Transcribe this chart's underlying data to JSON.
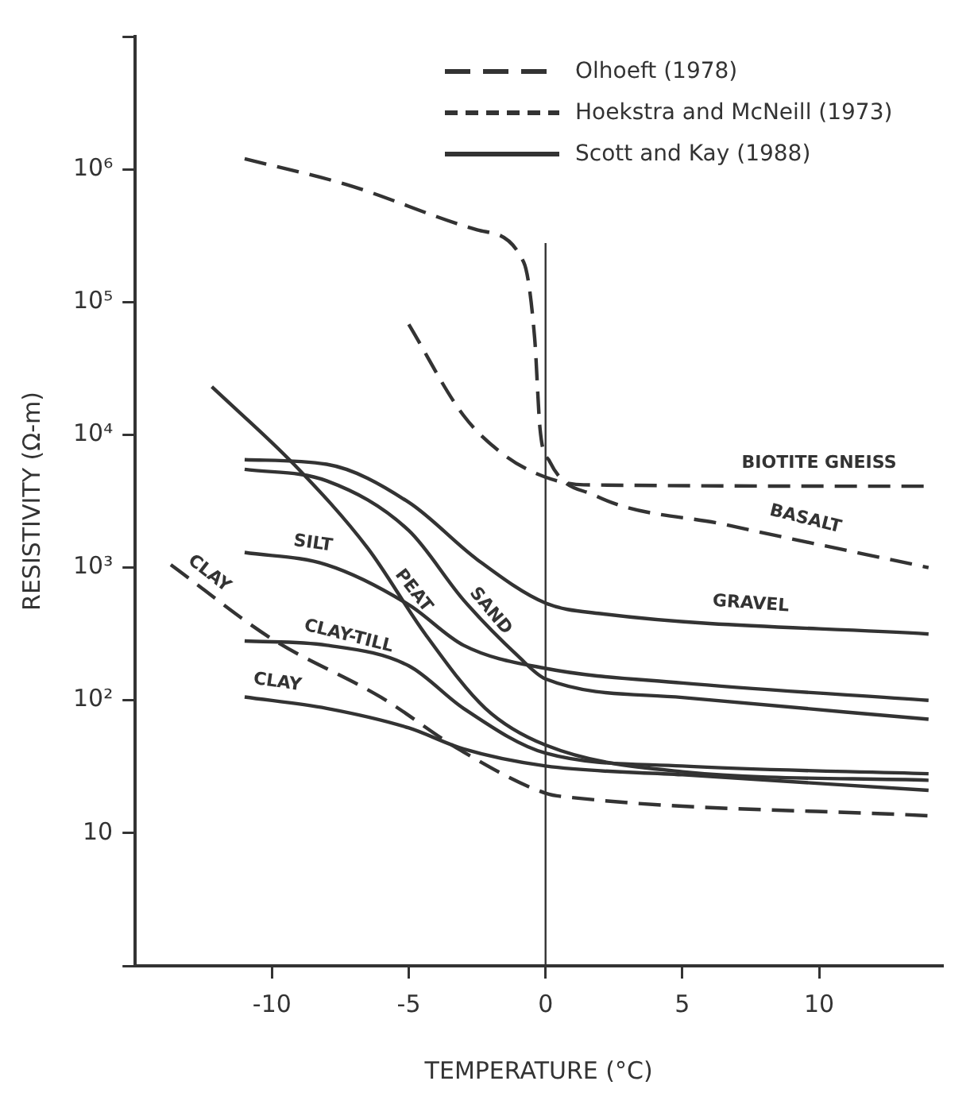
{
  "chart_data": {
    "type": "line",
    "xlabel": "TEMPERATURE (°C)",
    "ylabel": "RESISTIVITY (Ω-m)",
    "log": "y",
    "xlim": [
      -15,
      14.5
    ],
    "xticks": [
      -10,
      -5,
      0,
      5,
      10
    ],
    "ylim": [
      1,
      10000000
    ],
    "yticks": [
      {
        "value": 1,
        "label": null
      },
      {
        "value": 10,
        "label": "10"
      },
      {
        "value": 100,
        "label": "10²"
      },
      {
        "value": 1000,
        "label": "10³"
      },
      {
        "value": 10000,
        "label": "10⁴"
      },
      {
        "value": 100000,
        "label": "10⁵"
      },
      {
        "value": 1000000,
        "label": "10⁶"
      },
      {
        "value": 10000000,
        "label": null
      }
    ],
    "grid": false,
    "marker": "none",
    "ref_lines": [
      {
        "axis": "x",
        "value": 0,
        "color": "#333333",
        "line_style": "solid"
      }
    ],
    "annotations": [
      "Olhoeft (1978)",
      "Hoekstra and McNeill (1973)",
      "Scott and Kay (1988)"
    ],
    "series": [
      {
        "name": "BASALT",
        "color": "#333333",
        "line_style": "dashed",
        "x": [
          -11,
          -7.3,
          -2.5,
          -0.8,
          -0.4,
          -0.2,
          0.15,
          1.8,
          6.6,
          14
        ],
        "values": [
          1200000,
          770000,
          350000,
          200000,
          54000,
          11000,
          6300,
          3500,
          2100,
          1000
        ]
      },
      {
        "name": "BIOTITE GNEISS",
        "color": "#333333",
        "line_style": "dashed",
        "x": [
          -5,
          -3,
          -1.45,
          0,
          1.4,
          14
        ],
        "values": [
          68000,
          14000,
          6900,
          4800,
          4200,
          4100
        ]
      },
      {
        "name": "CLAY",
        "color": "#333333",
        "line_style": "dashed",
        "x": [
          -13.7,
          -10,
          -6,
          -3.1,
          0,
          0.9,
          14
        ],
        "values": [
          1050,
          290,
          105,
          42,
          20,
          18.6,
          13.5
        ]
      },
      {
        "name": "GRAVEL",
        "color": "#333333",
        "line_style": "solid",
        "x": [
          -11,
          -8,
          -5,
          -2.5,
          0,
          2,
          14
        ],
        "values": [
          6500,
          6000,
          3100,
          1150,
          540,
          450,
          316
        ]
      },
      {
        "name": "SAND",
        "color": "#333333",
        "line_style": "solid",
        "x": [
          -11,
          -8,
          -5,
          -3,
          -1,
          0,
          5,
          14
        ],
        "values": [
          5500,
          4500,
          1900,
          570,
          215,
          145,
          105,
          72
        ]
      },
      {
        "name": "PEAT",
        "color": "#333333",
        "line_style": "solid",
        "x": [
          -12.2,
          -9.2,
          -6.5,
          -4.4,
          -2.2,
          0,
          5,
          14
        ],
        "values": [
          23000,
          6000,
          1400,
          316,
          87,
          46,
          29,
          25
        ]
      },
      {
        "name": "SILT",
        "color": "#333333",
        "line_style": "solid",
        "x": [
          -11,
          -8,
          -5,
          -3,
          0,
          5,
          14
        ],
        "values": [
          1300,
          1050,
          525,
          260,
          174,
          135,
          100
        ]
      },
      {
        "name": "CLAY-TILL",
        "color": "#333333",
        "line_style": "solid",
        "x": [
          -11,
          -8,
          -5,
          -3,
          0,
          5,
          14
        ],
        "values": [
          280,
          260,
          182,
          87,
          40,
          32,
          28
        ]
      },
      {
        "name": "CLAY",
        "color": "#333333",
        "line_style": "solid",
        "x": [
          -11,
          -8,
          -5,
          -3,
          0,
          5,
          14
        ],
        "values": [
          106,
          87,
          62,
          43,
          32,
          27.5,
          21
        ]
      }
    ]
  }
}
